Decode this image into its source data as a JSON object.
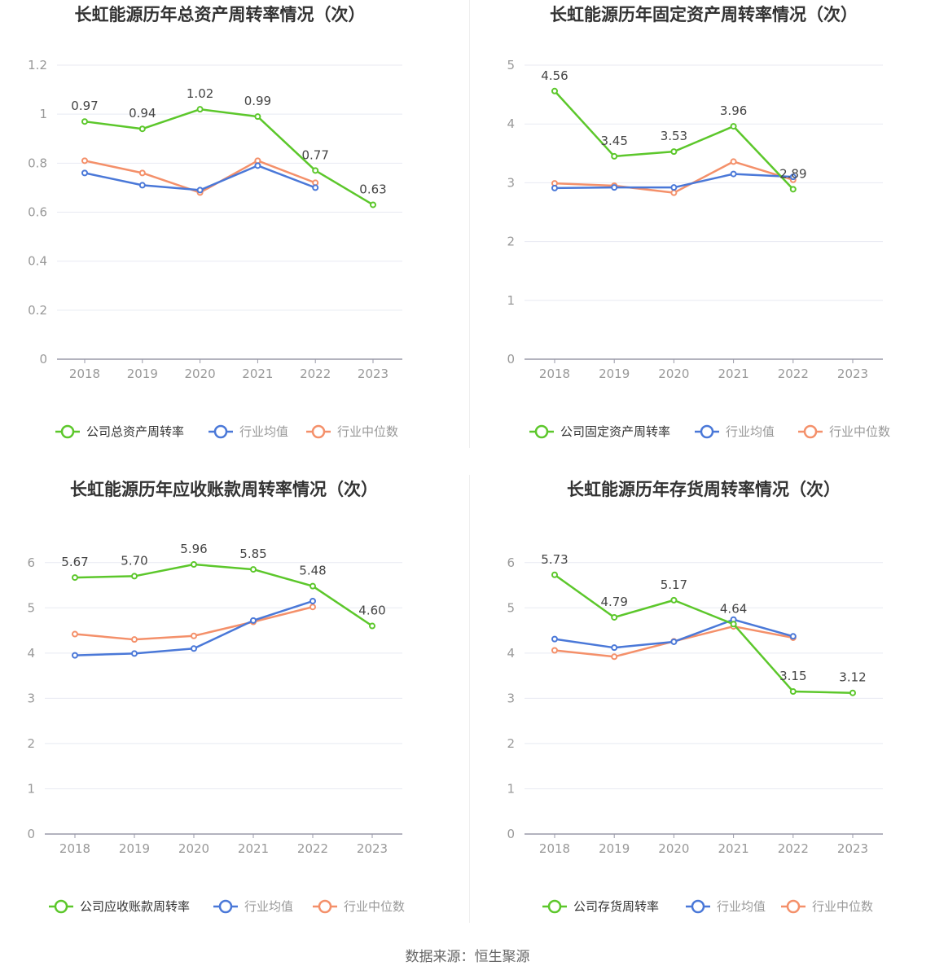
{
  "colors": {
    "company": "#5cc72b",
    "avg": "#4a78d8",
    "median": "#f4906a"
  },
  "charts": [
    {
      "type": "line",
      "title": "长虹能源历年总资产周转率情况（次）",
      "categories": [
        "2018",
        "2019",
        "2020",
        "2021",
        "2022",
        "2023"
      ],
      "yticks": [
        "0",
        "0.2",
        "0.4",
        "0.6",
        "0.8",
        "1",
        "1.2"
      ],
      "ylim": [
        0,
        1.2
      ],
      "series": [
        {
          "name": "公司总资产周转率",
          "values": [
            0.97,
            0.94,
            1.02,
            0.99,
            0.77,
            0.63
          ],
          "labels": [
            "0.97",
            "0.94",
            "1.02",
            "0.99",
            "0.77",
            "0.63"
          ]
        },
        {
          "name": "行业均值",
          "values": [
            0.76,
            0.71,
            0.69,
            0.79,
            0.7,
            null
          ]
        },
        {
          "name": "行业中位数",
          "values": [
            0.81,
            0.76,
            0.68,
            0.81,
            0.72,
            null
          ]
        }
      ],
      "legend": "bottom"
    },
    {
      "type": "line",
      "title": "长虹能源历年固定资产周转率情况（次）",
      "categories": [
        "2018",
        "2019",
        "2020",
        "2021",
        "2022",
        "2023"
      ],
      "yticks": [
        "0",
        "1",
        "2",
        "3",
        "4",
        "5"
      ],
      "ylim": [
        0,
        5
      ],
      "series": [
        {
          "name": "公司固定资产周转率",
          "values": [
            4.56,
            3.45,
            3.53,
            3.96,
            2.89,
            null
          ],
          "labels": [
            "4.56",
            "3.45",
            "3.53",
            "3.96",
            "2.89",
            ""
          ]
        },
        {
          "name": "行业均值",
          "values": [
            2.91,
            2.92,
            2.92,
            3.15,
            3.1,
            null
          ]
        },
        {
          "name": "行业中位数",
          "values": [
            2.99,
            2.95,
            2.83,
            3.36,
            3.05,
            null
          ]
        }
      ],
      "legend": "bottom"
    },
    {
      "type": "line",
      "title": "长虹能源历年应收账款周转率情况（次）",
      "categories": [
        "2018",
        "2019",
        "2020",
        "2021",
        "2022",
        "2023"
      ],
      "yticks": [
        "0",
        "1",
        "2",
        "3",
        "4",
        "5",
        "6"
      ],
      "ylim": [
        0,
        6.5
      ],
      "series": [
        {
          "name": "公司应收账款周转率",
          "values": [
            5.67,
            5.7,
            5.96,
            5.85,
            5.48,
            4.6
          ],
          "labels": [
            "5.67",
            "5.70",
            "5.96",
            "5.85",
            "5.48",
            "4.60"
          ]
        },
        {
          "name": "行业均值",
          "values": [
            3.95,
            3.99,
            4.1,
            4.72,
            5.15,
            null
          ]
        },
        {
          "name": "行业中位数",
          "values": [
            4.42,
            4.3,
            4.38,
            4.69,
            5.02,
            null
          ]
        }
      ],
      "legend": "bottom"
    },
    {
      "type": "line",
      "title": "长虹能源历年存货周转率情况（次）",
      "categories": [
        "2018",
        "2019",
        "2020",
        "2021",
        "2022",
        "2023"
      ],
      "yticks": [
        "0",
        "1",
        "2",
        "3",
        "4",
        "5",
        "6"
      ],
      "ylim": [
        0,
        6.5
      ],
      "series": [
        {
          "name": "公司存货周转率",
          "values": [
            5.73,
            4.79,
            5.17,
            4.64,
            3.15,
            3.12
          ],
          "labels": [
            "5.73",
            "4.79",
            "5.17",
            "4.64",
            "3.15",
            "3.12"
          ]
        },
        {
          "name": "行业均值",
          "values": [
            4.31,
            4.12,
            4.25,
            4.74,
            4.37,
            null
          ]
        },
        {
          "name": "行业中位数",
          "values": [
            4.06,
            3.92,
            4.26,
            4.59,
            4.34,
            null
          ]
        }
      ],
      "legend": "bottom"
    }
  ],
  "source": "数据来源：恒生聚源"
}
